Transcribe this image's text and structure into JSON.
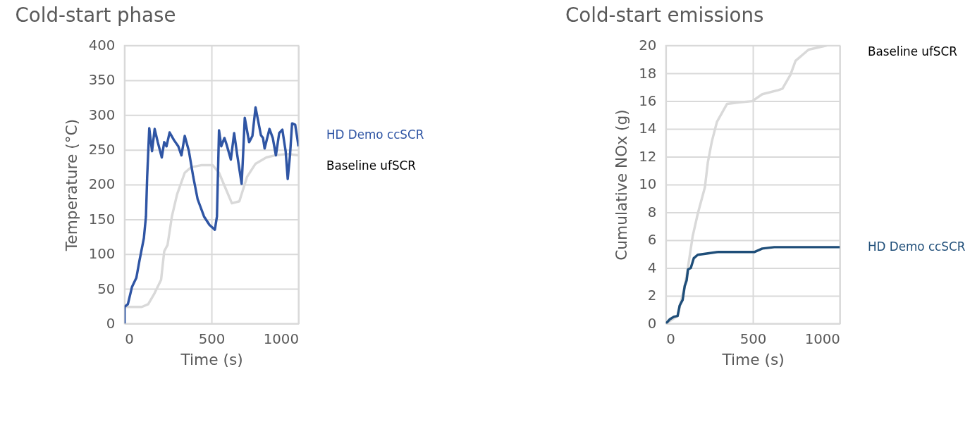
{
  "chart_data": [
    {
      "type": "line",
      "title": "Cold-start phase",
      "xlabel": "Time (s)",
      "ylabel": "Temperature (°C)",
      "xlim": [
        0,
        1000
      ],
      "ylim": [
        0,
        400
      ],
      "xticks": [
        0,
        500,
        1000
      ],
      "yticks": [
        0,
        50,
        100,
        150,
        200,
        250,
        300,
        350,
        400
      ],
      "grid": true,
      "series": [
        {
          "name": "Baseline ufSCR",
          "color": "#d9d9d9",
          "x": [
            0,
            99,
            136,
            173,
            210,
            228,
            247,
            272,
            302,
            346,
            383,
            444,
            506,
            543,
            580,
            617,
            660,
            704,
            753,
            815,
            864,
            938,
            1000
          ],
          "values": [
            24,
            24,
            28,
            44,
            63,
            104,
            113,
            154,
            186,
            217,
            225,
            228,
            228,
            217,
            195,
            173,
            176,
            211,
            230,
            239,
            242,
            244,
            242
          ]
        },
        {
          "name": "HD Demo ccSCR",
          "color": "#2f55a4",
          "x": [
            0,
            0,
            19,
            43,
            68,
            86,
            111,
            123,
            130,
            142,
            158,
            173,
            191,
            214,
            228,
            241,
            259,
            284,
            309,
            327,
            346,
            370,
            395,
            420,
            457,
            488,
            519,
            531,
            543,
            556,
            574,
            586,
            611,
            630,
            648,
            673,
            679,
            691,
            716,
            735,
            753,
            784,
            796,
            805,
            833,
            852,
            870,
            889,
            907,
            926,
            938,
            951,
            963,
            981,
            1000
          ],
          "values": [
            0,
            24,
            28,
            53,
            66,
            91,
            123,
            154,
            211,
            281,
            248,
            280,
            261,
            239,
            261,
            255,
            275,
            264,
            255,
            242,
            270,
            248,
            211,
            179,
            154,
            142,
            135,
            154,
            278,
            255,
            267,
            258,
            236,
            274,
            242,
            201,
            230,
            296,
            261,
            270,
            311,
            271,
            267,
            252,
            280,
            267,
            242,
            274,
            279,
            248,
            208,
            242,
            288,
            286,
            255
          ]
        }
      ]
    },
    {
      "type": "line",
      "title": "Cold-start emissions",
      "xlabel": "Time (s)",
      "ylabel": "Cumulative NOx (g)",
      "xlim": [
        0,
        1000
      ],
      "ylim": [
        0,
        20
      ],
      "xticks": [
        0,
        500,
        1000
      ],
      "yticks": [
        0,
        2,
        4,
        6,
        8,
        10,
        12,
        14,
        16,
        18,
        20
      ],
      "grid": true,
      "series": [
        {
          "name": "Baseline ufSCR",
          "color": "#d9d9d9",
          "x": [
            0,
            67,
            108,
            125,
            154,
            183,
            224,
            241,
            264,
            293,
            351,
            415,
            496,
            554,
            647,
            670,
            716,
            745,
            820,
            925
          ],
          "values": [
            0,
            0.55,
            2.7,
            3.9,
            6.3,
            7.9,
            9.8,
            11.6,
            13.1,
            14.5,
            15.8,
            15.9,
            16.0,
            16.5,
            16.8,
            16.9,
            17.9,
            18.9,
            19.7,
            20.0
          ]
        },
        {
          "name": "HD Demo ccSCR",
          "color": "#1f4e79",
          "x": [
            0,
            21,
            46,
            67,
            79,
            96,
            108,
            119,
            127,
            143,
            160,
            183,
            241,
            299,
            508,
            554,
            623,
            1000
          ],
          "values": [
            0,
            0.3,
            0.5,
            0.55,
            1.3,
            1.7,
            2.7,
            3.1,
            3.9,
            4.0,
            4.7,
            4.95,
            5.05,
            5.15,
            5.15,
            5.4,
            5.5,
            5.5
          ]
        }
      ]
    }
  ]
}
